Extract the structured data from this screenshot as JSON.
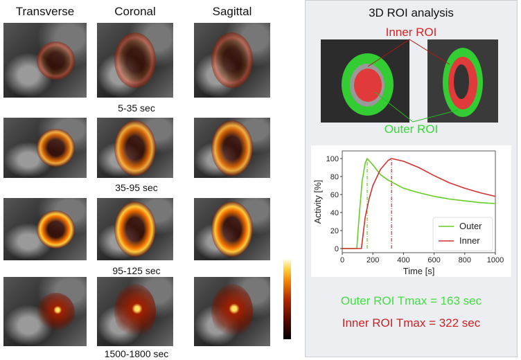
{
  "columns": [
    "Transverse",
    "Coronal",
    "Sagittal"
  ],
  "time_windows": [
    "5-35 sec",
    "35-95 sec",
    "95-125 sec",
    "1500-1800 sec"
  ],
  "panel": {
    "title": "3D ROI analysis",
    "inner_roi_label": "Inner ROI",
    "outer_roi_label": "Outer ROI",
    "outer_tmax": "Outer ROI Tmax = 163 sec",
    "inner_tmax": "Inner ROI Tmax = 322 sec"
  },
  "colors": {
    "outer": "#66cc22",
    "inner": "#d03030",
    "outer_text": "#44dd44",
    "inner_text": "#cc2222"
  },
  "chart_data": {
    "type": "line",
    "xlabel": "Time [s]",
    "ylabel": "Activity [%]",
    "xlim": [
      0,
      1000
    ],
    "ylim": [
      0,
      100
    ],
    "xticks": [
      0,
      200,
      400,
      600,
      800,
      1000
    ],
    "yticks": [
      0,
      20,
      40,
      60,
      80,
      100
    ],
    "legend": "bottom-right",
    "grid": false,
    "series": [
      {
        "name": "Outer",
        "color": "#66cc22",
        "tmax": 163,
        "x": [
          0,
          95,
          110,
          130,
          150,
          163,
          200,
          250,
          300,
          400,
          500,
          600,
          700,
          800,
          900,
          1000
        ],
        "y": [
          0,
          0,
          35,
          75,
          95,
          100,
          93,
          82,
          76,
          67,
          62,
          58,
          55,
          53,
          51,
          50
        ]
      },
      {
        "name": "Inner",
        "color": "#d03030",
        "tmax": 322,
        "x": [
          0,
          125,
          150,
          175,
          200,
          250,
          300,
          322,
          400,
          500,
          600,
          700,
          800,
          900,
          1000
        ],
        "y": [
          0,
          0,
          35,
          55,
          70,
          88,
          98,
          100,
          97,
          90,
          81,
          73,
          67,
          62,
          58
        ]
      }
    ]
  }
}
